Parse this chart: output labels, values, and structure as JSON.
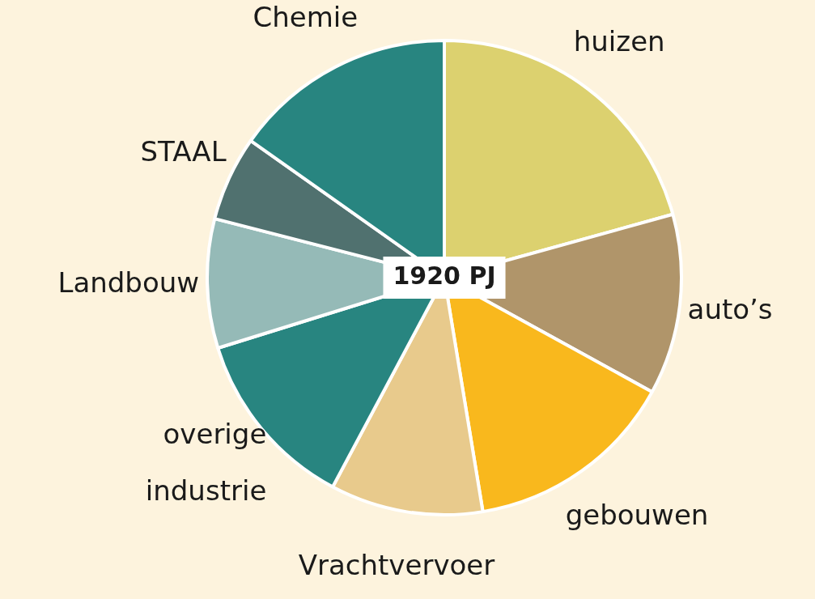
{
  "chart_data": {
    "type": "pie",
    "categories": [
      "huizen",
      "auto’s",
      "gebouwen",
      "Vrachtvervoer",
      "overige industrie",
      "Landbouw",
      "STAAL",
      "Chemie"
    ],
    "values": [
      20.7,
      12.3,
      14.4,
      10.4,
      12.4,
      8.8,
      5.8,
      15.2
    ],
    "colors": [
      "#dcd16f",
      "#b0956a",
      "#f9b81d",
      "#e8ca8c",
      "#288580",
      "#95bab7",
      "#50716f",
      "#288580"
    ],
    "annotations": [
      "1920 PJ"
    ],
    "legend": false
  }
}
